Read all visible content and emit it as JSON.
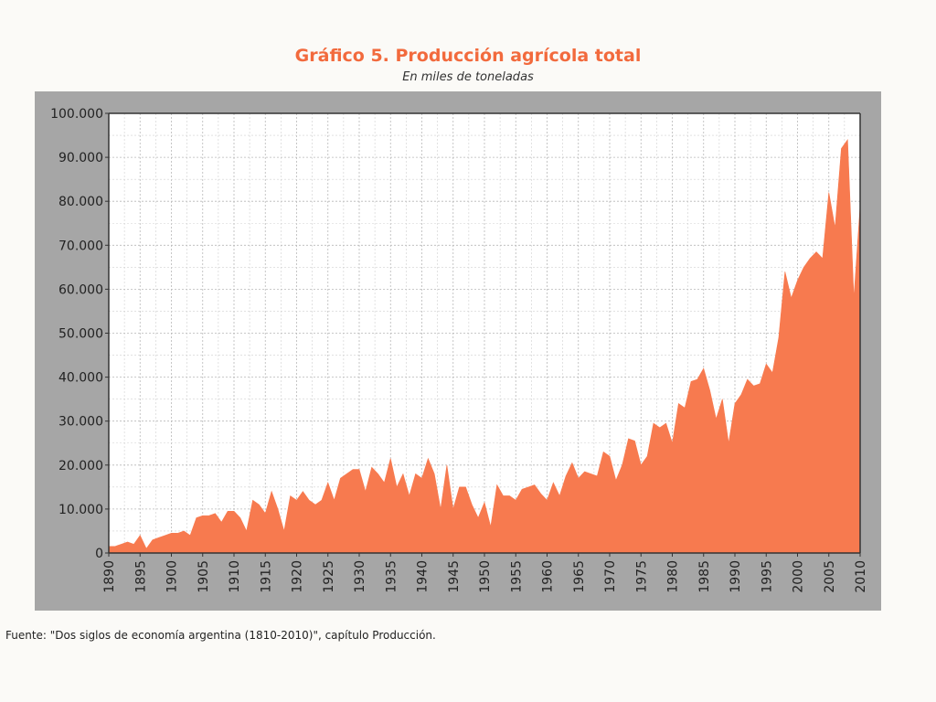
{
  "chart_data": {
    "type": "area",
    "title": "Gráfico 5. Producción agrícola total",
    "subtitle": "En miles de toneladas",
    "xlabel": "",
    "ylabel": "",
    "xlim": [
      1890,
      2010
    ],
    "ylim": [
      0,
      100000
    ],
    "yticks": [
      "0",
      "10.000",
      "20.000",
      "30.000",
      "40.000",
      "50.000",
      "60.000",
      "70.000",
      "80.000",
      "90.000",
      "100.000"
    ],
    "xticks": [
      "1890",
      "1895",
      "1900",
      "1905",
      "1910",
      "1915",
      "1920",
      "1925",
      "1930",
      "1935",
      "1940",
      "1945",
      "1950",
      "1955",
      "1960",
      "1965",
      "1970",
      "1975",
      "1980",
      "1985",
      "1990",
      "1995",
      "2000",
      "2005",
      "2010"
    ],
    "grid": true,
    "fill_color": "#f77a4f",
    "x": [
      1890,
      1891,
      1892,
      1893,
      1894,
      1895,
      1896,
      1897,
      1898,
      1899,
      1900,
      1901,
      1902,
      1903,
      1904,
      1905,
      1906,
      1907,
      1908,
      1909,
      1910,
      1911,
      1912,
      1913,
      1914,
      1915,
      1916,
      1917,
      1918,
      1919,
      1920,
      1921,
      1922,
      1923,
      1924,
      1925,
      1926,
      1927,
      1928,
      1929,
      1930,
      1931,
      1932,
      1933,
      1934,
      1935,
      1936,
      1937,
      1938,
      1939,
      1940,
      1941,
      1942,
      1943,
      1944,
      1945,
      1946,
      1947,
      1948,
      1949,
      1950,
      1951,
      1952,
      1953,
      1954,
      1955,
      1956,
      1957,
      1958,
      1959,
      1960,
      1961,
      1962,
      1963,
      1964,
      1965,
      1966,
      1967,
      1968,
      1969,
      1970,
      1971,
      1972,
      1973,
      1974,
      1975,
      1976,
      1977,
      1978,
      1979,
      1980,
      1981,
      1982,
      1983,
      1984,
      1985,
      1986,
      1987,
      1988,
      1989,
      1990,
      1991,
      1992,
      1993,
      1994,
      1995,
      1996,
      1997,
      1998,
      1999,
      2000,
      2001,
      2002,
      2003,
      2004,
      2005,
      2006,
      2007,
      2008,
      2009,
      2010
    ],
    "values": [
      1500,
      1500,
      2000,
      2500,
      2000,
      4000,
      1000,
      3000,
      3500,
      4000,
      4500,
      4500,
      5000,
      4000,
      8000,
      8500,
      8500,
      9000,
      7000,
      9500,
      9500,
      8000,
      5000,
      12000,
      11000,
      9000,
      14000,
      10000,
      5000,
      13000,
      12000,
      14000,
      12000,
      11000,
      12000,
      16000,
      12000,
      17000,
      18000,
      19000,
      19000,
      14000,
      19500,
      18000,
      16000,
      21500,
      15000,
      18000,
      13000,
      18000,
      17000,
      21500,
      18000,
      10000,
      20000,
      10000,
      15000,
      15000,
      11000,
      8000,
      11500,
      6000,
      15500,
      13000,
      13000,
      12000,
      14500,
      15000,
      15500,
      13500,
      12000,
      16000,
      13000,
      17500,
      20500,
      17000,
      18500,
      18000,
      17500,
      23000,
      22000,
      16500,
      20000,
      26000,
      25500,
      20000,
      22000,
      29500,
      28500,
      29500,
      25000,
      34000,
      33000,
      39000,
      39500,
      42000,
      37000,
      30500,
      35000,
      25000,
      34000,
      36000,
      39500,
      38000,
      38500,
      43000,
      41000,
      49000,
      64000,
      58000,
      62000,
      65000,
      67000,
      68500,
      67000,
      82000,
      74000,
      92000,
      94000,
      58000,
      79000
    ]
  },
  "source": "Fuente: \"Dos siglos de economía argentina (1810-2010)\", capítulo Producción."
}
